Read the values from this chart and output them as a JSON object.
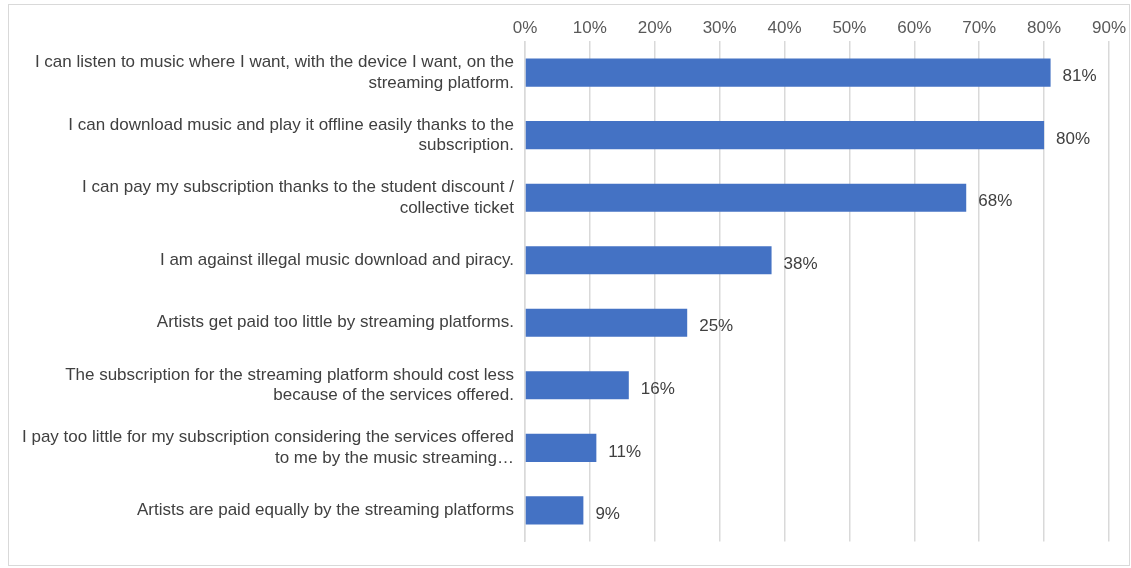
{
  "chart_data": {
    "type": "bar",
    "orientation": "horizontal",
    "categories": [
      "I can listen to music where I want, with the device I want, on the streaming platform.",
      "I can download music and play it offline easily thanks to the subscription.",
      "I can pay my subscription thanks to the student discount / collective ticket",
      "I am against illegal music download and piracy.",
      "Artists get paid too little by streaming platforms.",
      "The subscription for the streaming platform should cost less because of the services offered.",
      "I pay too little for my subscription considering the services offered to me by the music streaming…",
      "Artists are paid equally by the streaming platforms"
    ],
    "values": [
      81,
      80,
      68,
      38,
      25,
      16,
      11,
      9
    ],
    "value_labels": [
      "81%",
      "80%",
      "68%",
      "38%",
      "25%",
      "16%",
      "11%",
      "9%"
    ],
    "color": "#4472c4",
    "xlim": [
      0,
      90
    ],
    "xticks": [
      {
        "value": 0,
        "label": "0%"
      },
      {
        "value": 10,
        "label": "10%"
      },
      {
        "value": 20,
        "label": "20%"
      },
      {
        "value": 30,
        "label": "30%"
      },
      {
        "value": 40,
        "label": "40%"
      },
      {
        "value": 50,
        "label": "50%"
      },
      {
        "value": 60,
        "label": "60%"
      },
      {
        "value": 70,
        "label": "70%"
      },
      {
        "value": 80,
        "label": "80%"
      },
      {
        "value": 90,
        "label": "90%"
      }
    ],
    "grid": "x"
  }
}
